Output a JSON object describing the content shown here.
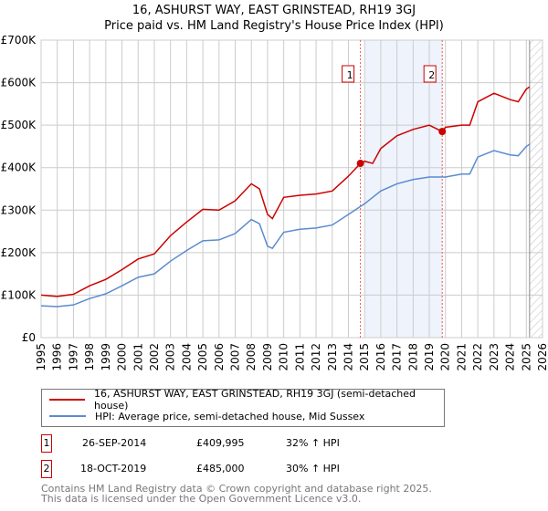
{
  "chart_data": {
    "type": "line",
    "title": "16, ASHURST WAY, EAST GRINSTEAD, RH19 3GJ",
    "subtitle": "Price paid vs. HM Land Registry's House Price Index (HPI)",
    "xlim": [
      1995,
      2026
    ],
    "ylim": [
      0,
      700000
    ],
    "x_ticks": [
      "1995",
      "1996",
      "1997",
      "1998",
      "1999",
      "2000",
      "2001",
      "2002",
      "2003",
      "2004",
      "2005",
      "2006",
      "2007",
      "2008",
      "2009",
      "2010",
      "2011",
      "2012",
      "2013",
      "2014",
      "2015",
      "2016",
      "2017",
      "2018",
      "2019",
      "2020",
      "2021",
      "2022",
      "2023",
      "2024",
      "2025",
      "2026"
    ],
    "y_ticks": [
      {
        "v": 0,
        "label": "£0"
      },
      {
        "v": 100000,
        "label": "£100K"
      },
      {
        "v": 200000,
        "label": "£200K"
      },
      {
        "v": 300000,
        "label": "£300K"
      },
      {
        "v": 400000,
        "label": "£400K"
      },
      {
        "v": 500000,
        "label": "£500K"
      },
      {
        "v": 600000,
        "label": "£600K"
      },
      {
        "v": 700000,
        "label": "£700K"
      }
    ],
    "grid": true,
    "series": [
      {
        "name": "16, ASHURST WAY, EAST GRINSTEAD, RH19 3GJ (semi-detached house)",
        "color": "#cc0000",
        "x": [
          1995,
          1996,
          1997,
          1998,
          1999,
          2000,
          2001,
          2002,
          2003,
          2004,
          2005,
          2006,
          2007,
          2008,
          2008.5,
          2009,
          2009.3,
          2010,
          2011,
          2012,
          2013,
          2014,
          2014.74,
          2015,
          2015.5,
          2016,
          2017,
          2018,
          2019,
          2019.8,
          2020,
          2021,
          2021.5,
          2022,
          2023,
          2024,
          2024.5,
          2025,
          2025.2
        ],
        "y": [
          100000,
          97000,
          102000,
          122000,
          137000,
          160000,
          185000,
          197000,
          240000,
          272000,
          302000,
          300000,
          322000,
          362000,
          350000,
          290000,
          280000,
          330000,
          335000,
          338000,
          345000,
          380000,
          409995,
          415000,
          410000,
          445000,
          475000,
          490000,
          500000,
          485000,
          495000,
          500000,
          500000,
          555000,
          575000,
          560000,
          555000,
          585000,
          590000
        ]
      },
      {
        "name": "HPI: Average price, semi-detached house, Mid Sussex",
        "color": "#5b8bd0",
        "x": [
          1995,
          1996,
          1997,
          1998,
          1999,
          2000,
          2001,
          2002,
          2003,
          2004,
          2005,
          2006,
          2007,
          2008,
          2008.5,
          2009,
          2009.3,
          2010,
          2011,
          2012,
          2013,
          2014,
          2015,
          2016,
          2017,
          2018,
          2019,
          2020,
          2021,
          2021.5,
          2022,
          2023,
          2024,
          2024.5,
          2025,
          2025.2
        ],
        "y": [
          75000,
          73000,
          77000,
          92000,
          103000,
          122000,
          142000,
          150000,
          180000,
          205000,
          228000,
          230000,
          245000,
          278000,
          268000,
          215000,
          210000,
          248000,
          255000,
          258000,
          265000,
          290000,
          315000,
          345000,
          362000,
          372000,
          378000,
          378000,
          385000,
          385000,
          425000,
          440000,
          430000,
          428000,
          450000,
          455000
        ]
      }
    ],
    "sales": [
      {
        "label": "1",
        "x": 2014.74,
        "date": "26-SEP-2014",
        "price": "£409,995",
        "hpi": "32% ↑ HPI",
        "y": 409995
      },
      {
        "label": "2",
        "x": 2019.8,
        "date": "18-OCT-2019",
        "price": "£485,000",
        "hpi": "30% ↑ HPI",
        "y": 485000
      }
    ],
    "shaded_range": [
      2015,
      2019.8
    ],
    "forecast_start": 2025.2
  },
  "footer": [
    "Contains HM Land Registry data © Crown copyright and database right 2025.",
    "This data is licensed under the Open Government Licence v3.0."
  ]
}
